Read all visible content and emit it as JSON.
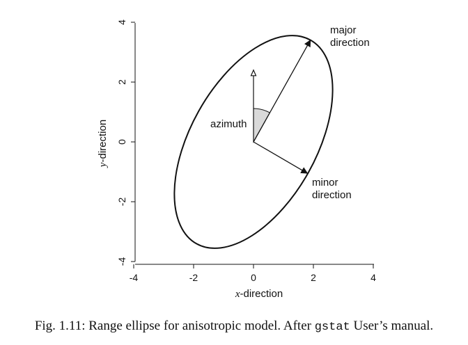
{
  "chart_data": {
    "type": "diagram",
    "xlabel_italic": "x",
    "xlabel_rest": "-direction",
    "ylabel_italic": "y",
    "ylabel_rest": "-direction",
    "xlim": [
      -4,
      4
    ],
    "ylim": [
      -4,
      4
    ],
    "x_ticks": [
      {
        "value": -4,
        "label": "-4"
      },
      {
        "value": -2,
        "label": "-2"
      },
      {
        "value": 0,
        "label": "0"
      },
      {
        "value": 2,
        "label": "2"
      },
      {
        "value": 4,
        "label": "4"
      }
    ],
    "y_ticks": [
      {
        "value": -4,
        "label": "-4"
      },
      {
        "value": -2,
        "label": "-2"
      },
      {
        "value": 0,
        "label": "0"
      },
      {
        "value": 2,
        "label": "2"
      },
      {
        "value": 4,
        "label": "4"
      }
    ],
    "ellipse": {
      "center": [
        0,
        0
      ],
      "major_endpoint": [
        1.9,
        3.4
      ],
      "minor_endpoint": [
        1.8,
        -1.05
      ],
      "semi_major": 3.9,
      "semi_minor": 2.1
    },
    "north_arrow_tip": [
      0,
      2.4
    ],
    "labels": {
      "major": [
        "major",
        "direction"
      ],
      "minor": [
        "minor",
        "direction"
      ],
      "azimuth": "azimuth"
    }
  },
  "caption": {
    "prefix": "Fig. 1.11: Range ellipse for anisotropic model. After ",
    "code": "gstat",
    "suffix": " User’s manual."
  },
  "colors": {
    "ink": "#111111",
    "azimuth_fill": "#d9d9d9"
  }
}
